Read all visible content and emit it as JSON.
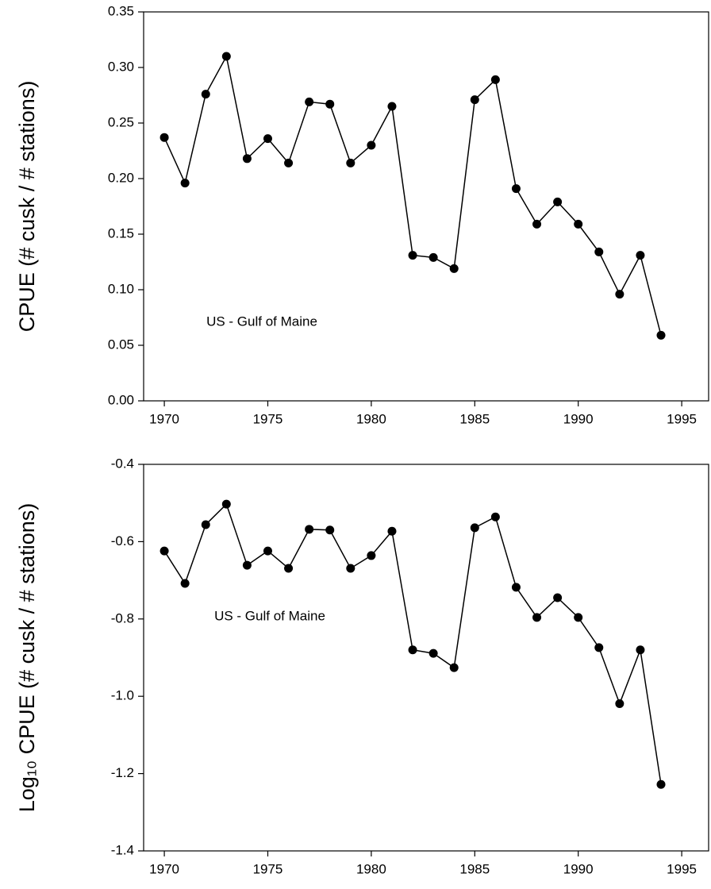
{
  "chart_data": [
    {
      "type": "line",
      "ylabel": "CPUE (# cusk / # stations)",
      "annotation": "US - Gulf of Maine",
      "color": "#000000",
      "x": [
        1970,
        1971,
        1972,
        1973,
        1974,
        1975,
        1976,
        1977,
        1978,
        1979,
        1980,
        1981,
        1982,
        1983,
        1984,
        1985,
        1986,
        1987,
        1988,
        1989,
        1990,
        1991,
        1992,
        1993,
        1994
      ],
      "values": [
        0.237,
        0.196,
        0.276,
        0.31,
        0.218,
        0.236,
        0.214,
        0.269,
        0.267,
        0.214,
        0.23,
        0.265,
        0.131,
        0.129,
        0.119,
        0.271,
        0.289,
        0.191,
        0.159,
        0.179,
        0.159,
        0.134,
        0.096,
        0.131,
        0.059
      ],
      "xlim": [
        1969,
        1996.3
      ],
      "xticks": [
        1970,
        1975,
        1980,
        1985,
        1990,
        1995
      ],
      "ylim": [
        0,
        0.35
      ],
      "yticks": [
        {
          "value": 0,
          "label": "0.00"
        },
        0.05,
        {
          "value": 0.1,
          "label": "0.10"
        },
        0.15,
        {
          "value": 0.2,
          "label": "0.20"
        },
        0.25,
        {
          "value": 0.3,
          "label": "0.30"
        },
        0.35
      ]
    },
    {
      "type": "line",
      "ylabel": "Log₁₀ CPUE (# cusk / # stations)",
      "annotation": "US - Gulf of Maine",
      "color": "#000000",
      "x": [
        1970,
        1971,
        1972,
        1973,
        1974,
        1975,
        1976,
        1977,
        1978,
        1979,
        1980,
        1981,
        1982,
        1983,
        1984,
        1985,
        1986,
        1987,
        1988,
        1989,
        1990,
        1991,
        1992,
        1993,
        1994
      ],
      "values": [
        -0.624,
        -0.708,
        -0.556,
        -0.503,
        -0.661,
        -0.624,
        -0.669,
        -0.568,
        -0.57,
        -0.669,
        -0.636,
        -0.573,
        -0.88,
        -0.889,
        -0.926,
        -0.564,
        -0.536,
        -0.718,
        -0.796,
        -0.745,
        -0.796,
        -0.874,
        -1.019,
        -0.88,
        -1.228
      ],
      "xlim": [
        1969,
        1996.3
      ],
      "xticks": [
        1970,
        1975,
        1980,
        1985,
        1990,
        1995
      ],
      "ylim": [
        -1.4,
        -0.4
      ],
      "yticks": [
        -0.4,
        -0.6,
        -0.8,
        {
          "value": -1,
          "label": "-1.0"
        },
        -1.2,
        -1.4
      ]
    }
  ]
}
